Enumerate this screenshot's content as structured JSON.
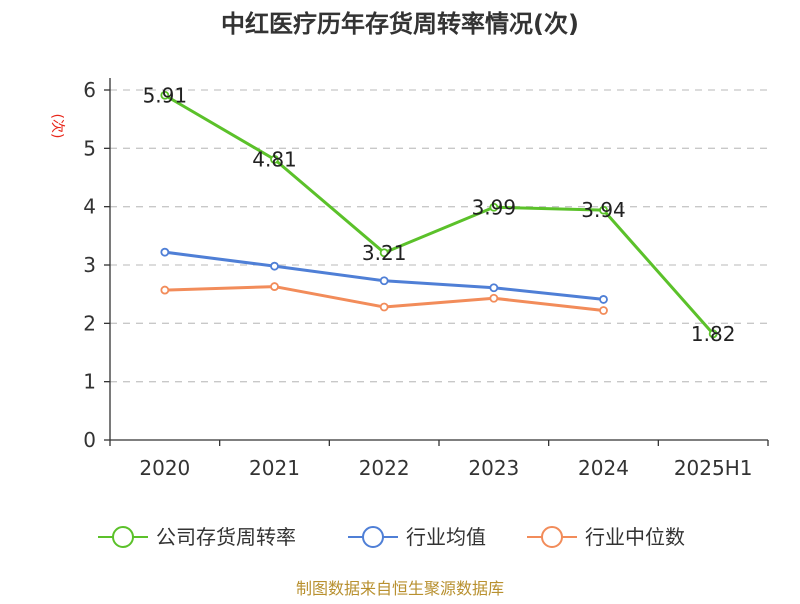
{
  "chart_data": {
    "type": "line",
    "title": "中红医疗历年存货周转率情况(次)",
    "ylabel": "(次)",
    "xlabel": "",
    "categories": [
      "2020",
      "2021",
      "2022",
      "2023",
      "2024",
      "2025H1"
    ],
    "ylim": [
      0,
      6
    ],
    "yticks": [
      "0",
      "1",
      "2",
      "3",
      "4",
      "5",
      "6"
    ],
    "grid": true,
    "legend_position": "bottom",
    "series": [
      {
        "name": "公司存货周转率",
        "color": "#5bc12a",
        "values": [
          5.91,
          4.81,
          3.21,
          3.99,
          3.94,
          1.82
        ],
        "labels": [
          "5.91",
          "4.81",
          "3.21",
          "3.99",
          "3.94",
          "1.82"
        ]
      },
      {
        "name": "行业均值",
        "color": "#4f7fd6",
        "values": [
          3.22,
          2.98,
          2.73,
          2.61,
          2.41,
          null
        ]
      },
      {
        "name": "行业中位数",
        "color": "#f28c5a",
        "values": [
          2.57,
          2.63,
          2.28,
          2.43,
          2.22,
          null
        ]
      }
    ],
    "source": "制图数据来自恒生聚源数据库"
  }
}
